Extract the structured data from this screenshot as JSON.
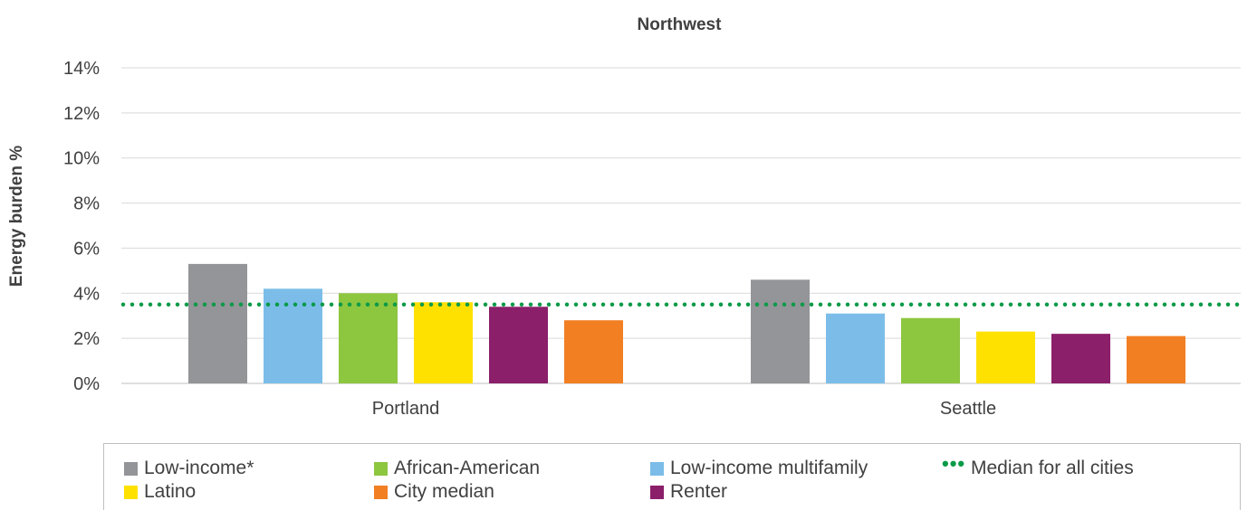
{
  "chart_data": {
    "type": "bar",
    "title": "Northwest",
    "xlabel": "",
    "ylabel": "Energy burden %",
    "ylim": [
      0,
      14
    ],
    "yticks": [
      "0%",
      "2%",
      "4%",
      "6%",
      "8%",
      "10%",
      "12%",
      "14%"
    ],
    "grid": true,
    "legend_position": "bottom",
    "categories": [
      "Portland",
      "Seattle"
    ],
    "series": [
      {
        "name": "Low-income*",
        "color": "#939598",
        "values": [
          5.3,
          4.6
        ]
      },
      {
        "name": "Low-income multifamily",
        "color": "#7bbde8",
        "values": [
          4.2,
          3.1
        ]
      },
      {
        "name": "African-American",
        "color": "#8dc63f",
        "values": [
          4.0,
          2.9
        ]
      },
      {
        "name": "Latino",
        "color": "#ffe100",
        "values": [
          3.6,
          2.3
        ]
      },
      {
        "name": "Renter",
        "color": "#8b1f6a",
        "values": [
          3.4,
          2.2
        ]
      },
      {
        "name": "City median",
        "color": "#f27f22",
        "values": [
          2.8,
          2.1
        ]
      }
    ],
    "reference_line": {
      "name": "Median for all cities",
      "value": 3.5,
      "color": "#0a9a48",
      "style": "dotted"
    }
  },
  "legend": {
    "low_income": "Low-income*",
    "african_american": "African-American",
    "low_income_multifamily": "Low-income multifamily",
    "median_all_cities": "Median for all cities",
    "latino": "Latino",
    "city_median": "City median",
    "renter": "Renter"
  }
}
